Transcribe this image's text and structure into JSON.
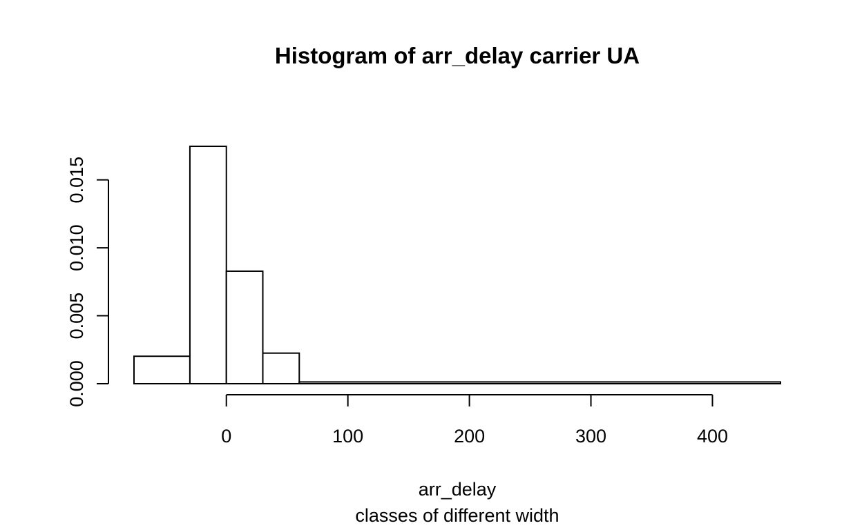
{
  "chart_data": {
    "type": "bar",
    "title": "Histogram of arr_delay carrier UA",
    "xlabel": "arr_delay",
    "sub": "classes of different width",
    "ylabel": "",
    "xlim": [
      -76,
      456
    ],
    "ylim": [
      0,
      0.0175
    ],
    "x_ticks": [
      0,
      100,
      200,
      300,
      400
    ],
    "x_tick_labels": [
      "0",
      "100",
      "200",
      "300",
      "400"
    ],
    "y_ticks": [
      0,
      0.005,
      0.01,
      0.015
    ],
    "y_tick_labels": [
      "0.000",
      "0.005",
      "0.010",
      "0.015"
    ],
    "bins": [
      {
        "start": -76,
        "end": -30,
        "density": 0.00202
      },
      {
        "start": -30,
        "end": 0,
        "density": 0.01747
      },
      {
        "start": 0,
        "end": 30,
        "density": 0.00828
      },
      {
        "start": 30,
        "end": 60,
        "density": 0.00225
      },
      {
        "start": 60,
        "end": 456,
        "density": 0.00013
      }
    ],
    "grid": false,
    "legend": "none"
  },
  "colors": {
    "stroke": "#000000",
    "fill": "#ffffff",
    "background": "#ffffff"
  }
}
